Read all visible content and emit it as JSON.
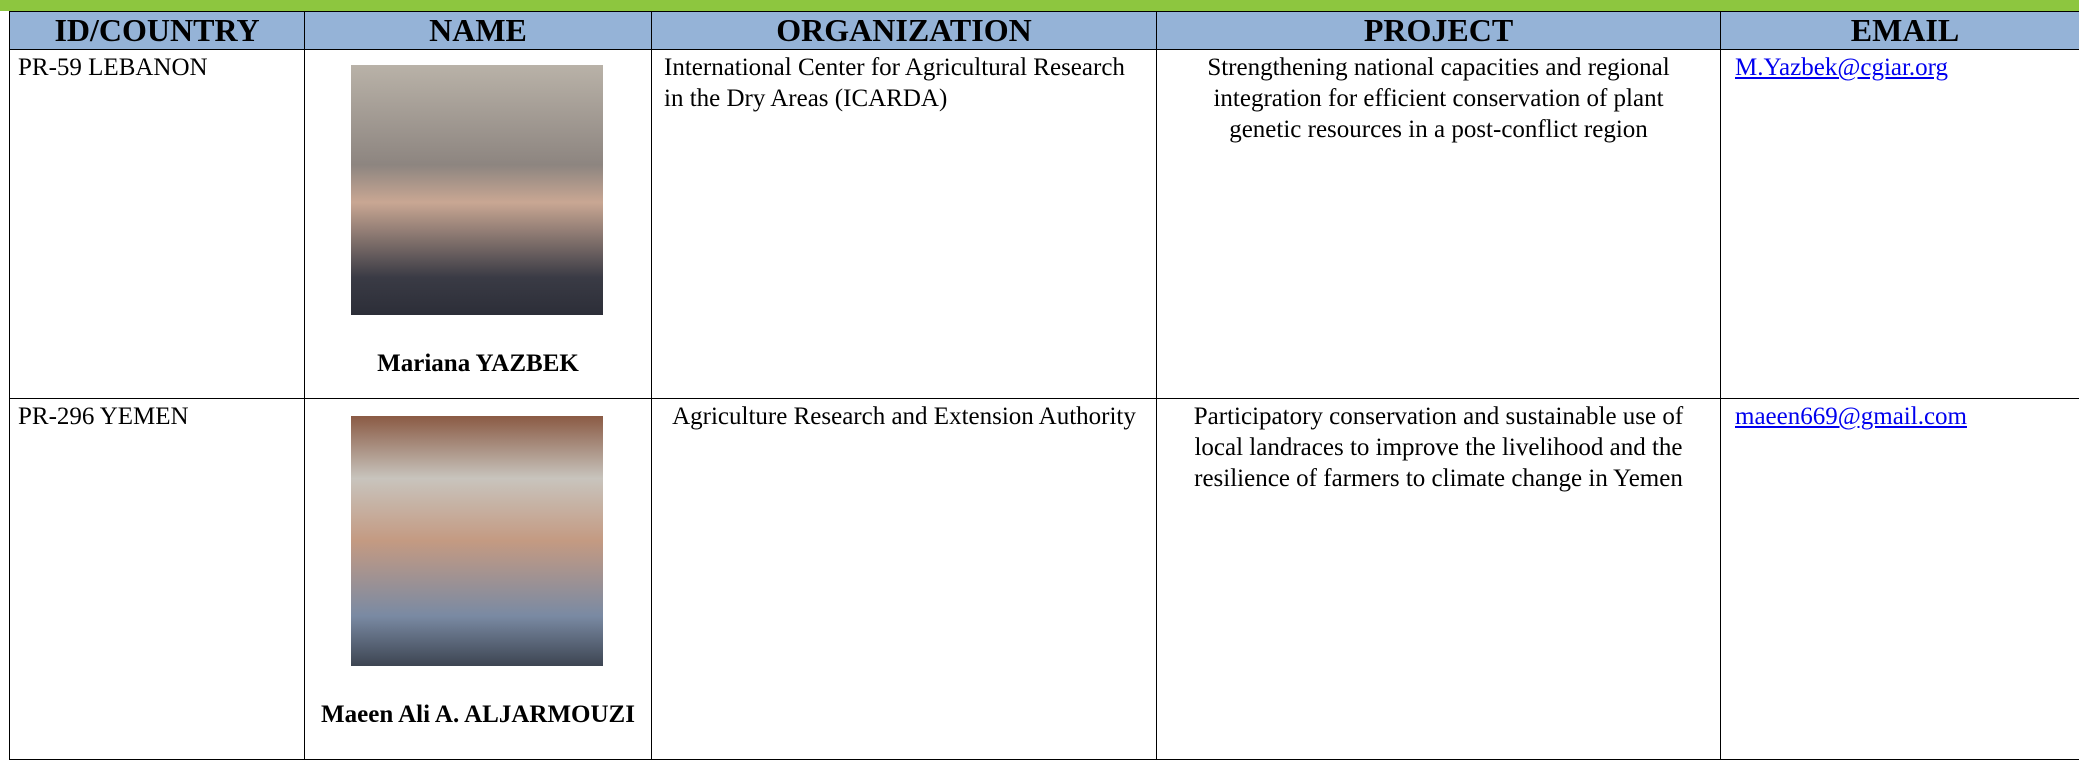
{
  "header": {
    "columns": [
      "ID/COUNTRY",
      "NAME",
      "ORGANIZATION",
      "PROJECT",
      "EMAIL"
    ]
  },
  "table": {
    "rows": [
      {
        "id_country": "PR-59 LEBANON",
        "name": "Mariana YAZBEK",
        "organization": "International Center for Agricultural Research in the Dry Areas (ICARDA)",
        "project": "Strengthening national capacities and regional integration for efficient conservation of plant genetic resources in a post-conflict region",
        "email": "M.Yazbek@cgiar.org"
      },
      {
        "id_country": "PR-296 YEMEN",
        "name": "Maeen Ali A. ALJARMOUZI",
        "organization": "Agriculture Research and Extension Authority",
        "project": "Participatory conservation and sustainable use of local landraces to improve the livelihood and the resilience of farmers to climate change in Yemen",
        "email": "maeen669@gmail.com"
      }
    ]
  }
}
